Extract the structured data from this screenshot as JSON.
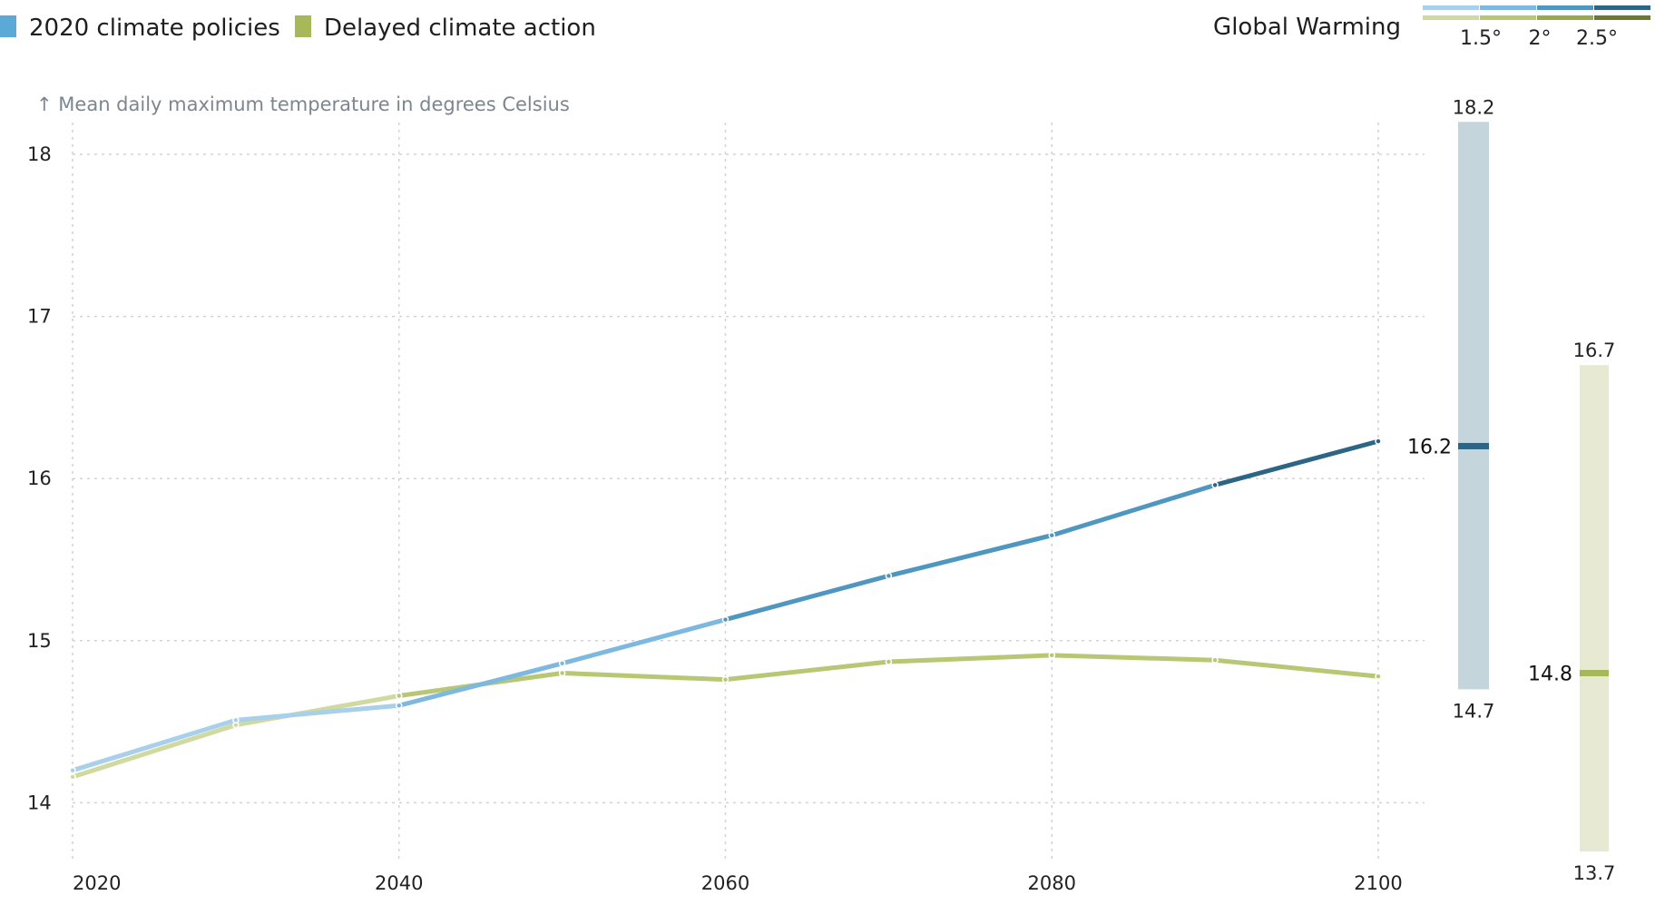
{
  "legend": {
    "items": [
      {
        "label": "2020 climate policies",
        "color": "#5aa9d6"
      },
      {
        "label": "Delayed climate action",
        "color": "#a6b85a"
      }
    ]
  },
  "global_warming": {
    "title": "Global Warming",
    "labels": [
      "1.5°",
      "2°",
      "2.5°"
    ],
    "policies_colors": [
      "#a9d0ea",
      "#7cb8df",
      "#4f96c0",
      "#2d6585"
    ],
    "delayed_colors": [
      "#cfd9a0",
      "#b7c774",
      "#98a94c",
      "#6b7a2e"
    ]
  },
  "chart_data": {
    "type": "line",
    "ylabel": "Mean daily maximum temperature in degrees Celsius",
    "xlim": [
      2020,
      2100
    ],
    "ylim": [
      13.6,
      18.2
    ],
    "x_ticks": [
      2020,
      2040,
      2060,
      2080,
      2100
    ],
    "y_ticks": [
      14,
      15,
      16,
      17,
      18
    ],
    "grid": true,
    "series": [
      {
        "name": "2020 climate policies",
        "x": [
          2020,
          2030,
          2040,
          2050,
          2060,
          2070,
          2080,
          2090,
          2100
        ],
        "values": [
          14.2,
          14.51,
          14.6,
          14.86,
          15.13,
          15.4,
          15.65,
          15.96,
          16.23
        ],
        "colors": [
          "#a9d0ea",
          "#a9d0ea",
          "#7cb8df",
          "#7cb8df",
          "#4f96c0",
          "#4f96c0",
          "#4f96c0",
          "#2d6585"
        ]
      },
      {
        "name": "Delayed climate action",
        "x": [
          2020,
          2030,
          2040,
          2050,
          2060,
          2070,
          2080,
          2090,
          2100
        ],
        "values": [
          14.16,
          14.48,
          14.66,
          14.8,
          14.76,
          14.87,
          14.91,
          14.88,
          14.78
        ],
        "colors": [
          "#cfd9a0",
          "#cfd9a0",
          "#b7c774",
          "#b7c774",
          "#b7c774",
          "#b7c774",
          "#b7c774",
          "#b7c774"
        ]
      }
    ],
    "ranges": [
      {
        "series": "2020 climate policies",
        "low": 14.7,
        "high": 18.2,
        "mid": 16.2,
        "low_label": "14.7",
        "high_label": "18.2",
        "mid_label": "16.2",
        "bar_color": "#c5d5dc",
        "mid_color": "#2d6585"
      },
      {
        "series": "Delayed climate action",
        "low": 13.7,
        "high": 16.7,
        "mid": 14.8,
        "low_label": "13.7",
        "high_label": "16.7",
        "mid_label": "14.8",
        "bar_color": "#e7e9d2",
        "mid_color": "#a6b85a"
      }
    ]
  }
}
